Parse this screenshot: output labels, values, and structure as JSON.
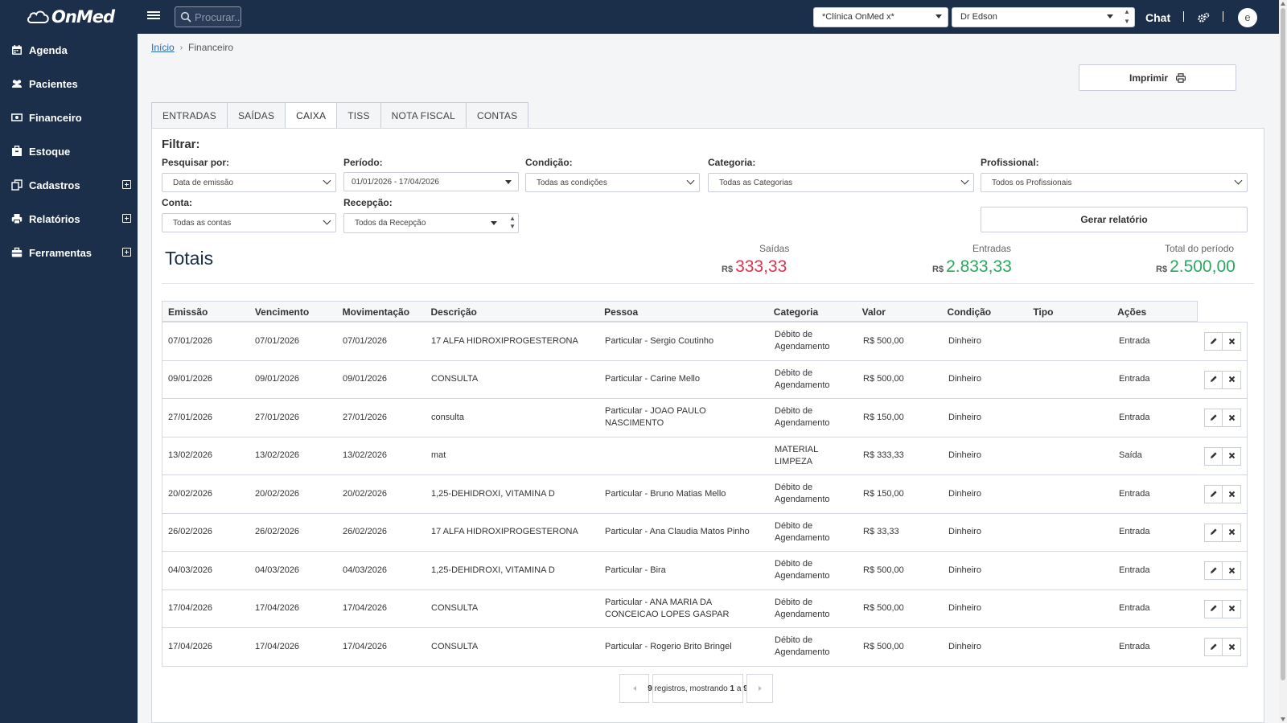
{
  "topbar": {
    "brand": "OnMed",
    "search_placeholder": "Procurar...",
    "clinic_select": "*Clínica OnMed x*",
    "doctor_select": "Dr Edson",
    "chat_label": "Chat",
    "avatar_letter": "e"
  },
  "sidebar": {
    "items": [
      {
        "label": "Agenda",
        "icon": "calendar-icon",
        "expandable": false
      },
      {
        "label": "Pacientes",
        "icon": "users-icon",
        "expandable": false
      },
      {
        "label": "Financeiro",
        "icon": "money-icon",
        "expandable": false
      },
      {
        "label": "Estoque",
        "icon": "box-icon",
        "expandable": false
      },
      {
        "label": "Cadastros",
        "icon": "copy-icon",
        "expandable": true
      },
      {
        "label": "Relatórios",
        "icon": "printer-icon",
        "expandable": true
      },
      {
        "label": "Ferramentas",
        "icon": "toolbox-icon",
        "expandable": true
      }
    ]
  },
  "breadcrumb": {
    "home": "Início",
    "current": "Financeiro"
  },
  "print_label": "Imprimir",
  "tabs": [
    {
      "label": "ENTRADAS",
      "active": false
    },
    {
      "label": "SAÍDAS",
      "active": false
    },
    {
      "label": "CAIXA",
      "active": true
    },
    {
      "label": "TISS",
      "active": false
    },
    {
      "label": "NOTA FISCAL",
      "active": false
    },
    {
      "label": "CONTAS",
      "active": false
    }
  ],
  "filters": {
    "title": "Filtrar:",
    "pesquisar_label": "Pesquisar por:",
    "pesquisar_value": "Data de emissão",
    "periodo_label": "Período:",
    "periodo_value": "01/01/2026 - 17/04/2026",
    "condicao_label": "Condição:",
    "condicao_value": "Todas as condições",
    "categoria_label": "Categoria:",
    "categoria_value": "Todas as Categorias",
    "profissional_label": "Profissional:",
    "profissional_value": "Todos os Profissionais",
    "conta_label": "Conta:",
    "conta_value": "Todas as contas",
    "recepcao_label": "Recepção:",
    "recepcao_value": "Todos da Recepção",
    "report_button": "Gerar relatório"
  },
  "totals": {
    "title": "Totais",
    "currency": "R$",
    "saidas_label": "Saídas",
    "saidas_value": "333,33",
    "entradas_label": "Entradas",
    "entradas_value": "2.833,33",
    "total_label": "Total do período",
    "total_value": "2.500,00",
    "colors": {
      "saidas": "#d9354f",
      "entradas": "#2aa860",
      "total": "#2aa860"
    }
  },
  "table": {
    "headers": [
      "Emissão",
      "Vencimento",
      "Movimentação",
      "Descrição",
      "Pessoa",
      "Categoria",
      "Valor",
      "Condição",
      "Tipo",
      "Ações"
    ],
    "rows": [
      [
        "07/01/2026",
        "07/01/2026",
        "07/01/2026",
        "17 ALFA HIDROXIPROGESTERONA",
        "Particular - Sergio Coutinho",
        "Débito de Agendamento",
        "R$ 500,00",
        "Dinheiro",
        "",
        "Entrada"
      ],
      [
        "09/01/2026",
        "09/01/2026",
        "09/01/2026",
        "CONSULTA",
        "Particular - Carine Mello",
        "Débito de Agendamento",
        "R$ 500,00",
        "Dinheiro",
        "",
        "Entrada"
      ],
      [
        "27/01/2026",
        "27/01/2026",
        "27/01/2026",
        "consulta",
        "Particular - JOAO PAULO NASCIMENTO",
        "Débito de Agendamento",
        "R$ 150,00",
        "Dinheiro",
        "",
        "Entrada"
      ],
      [
        "13/02/2026",
        "13/02/2026",
        "13/02/2026",
        "mat",
        "",
        "MATERIAL LIMPEZA",
        "R$ 333,33",
        "Dinheiro",
        "",
        "Saída"
      ],
      [
        "20/02/2026",
        "20/02/2026",
        "20/02/2026",
        "1,25-DEHIDROXI, VITAMINA D",
        "Particular - Bruno Matias Mello",
        "Débito de Agendamento",
        "R$ 150,00",
        "Dinheiro",
        "",
        "Entrada"
      ],
      [
        "26/02/2026",
        "26/02/2026",
        "26/02/2026",
        "17 ALFA HIDROXIPROGESTERONA",
        "Particular - Ana Claudia Matos Pinho",
        "Débito de Agendamento",
        "R$ 33,33",
        "Dinheiro",
        "",
        "Entrada"
      ],
      [
        "04/03/2026",
        "04/03/2026",
        "04/03/2026",
        "1,25-DEHIDROXI, VITAMINA D",
        "Particular - Bira",
        "Débito de Agendamento",
        "R$ 500,00",
        "Dinheiro",
        "",
        "Entrada"
      ],
      [
        "17/04/2026",
        "17/04/2026",
        "17/04/2026",
        "CONSULTA",
        "Particular - ANA MARIA DA CONCEICAO LOPES GASPAR",
        "Débito de Agendamento",
        "R$ 500,00",
        "Dinheiro",
        "",
        "Entrada"
      ],
      [
        "17/04/2026",
        "17/04/2026",
        "17/04/2026",
        "CONSULTA",
        "Particular - Rogerio Brito Bringel",
        "Débito de Agendamento",
        "R$ 500,00",
        "Dinheiro",
        "",
        "Entrada"
      ]
    ]
  },
  "pagination": {
    "count": "9",
    "middle": " registros, mostrando ",
    "from": "1",
    "sep": " a ",
    "to": "9"
  }
}
